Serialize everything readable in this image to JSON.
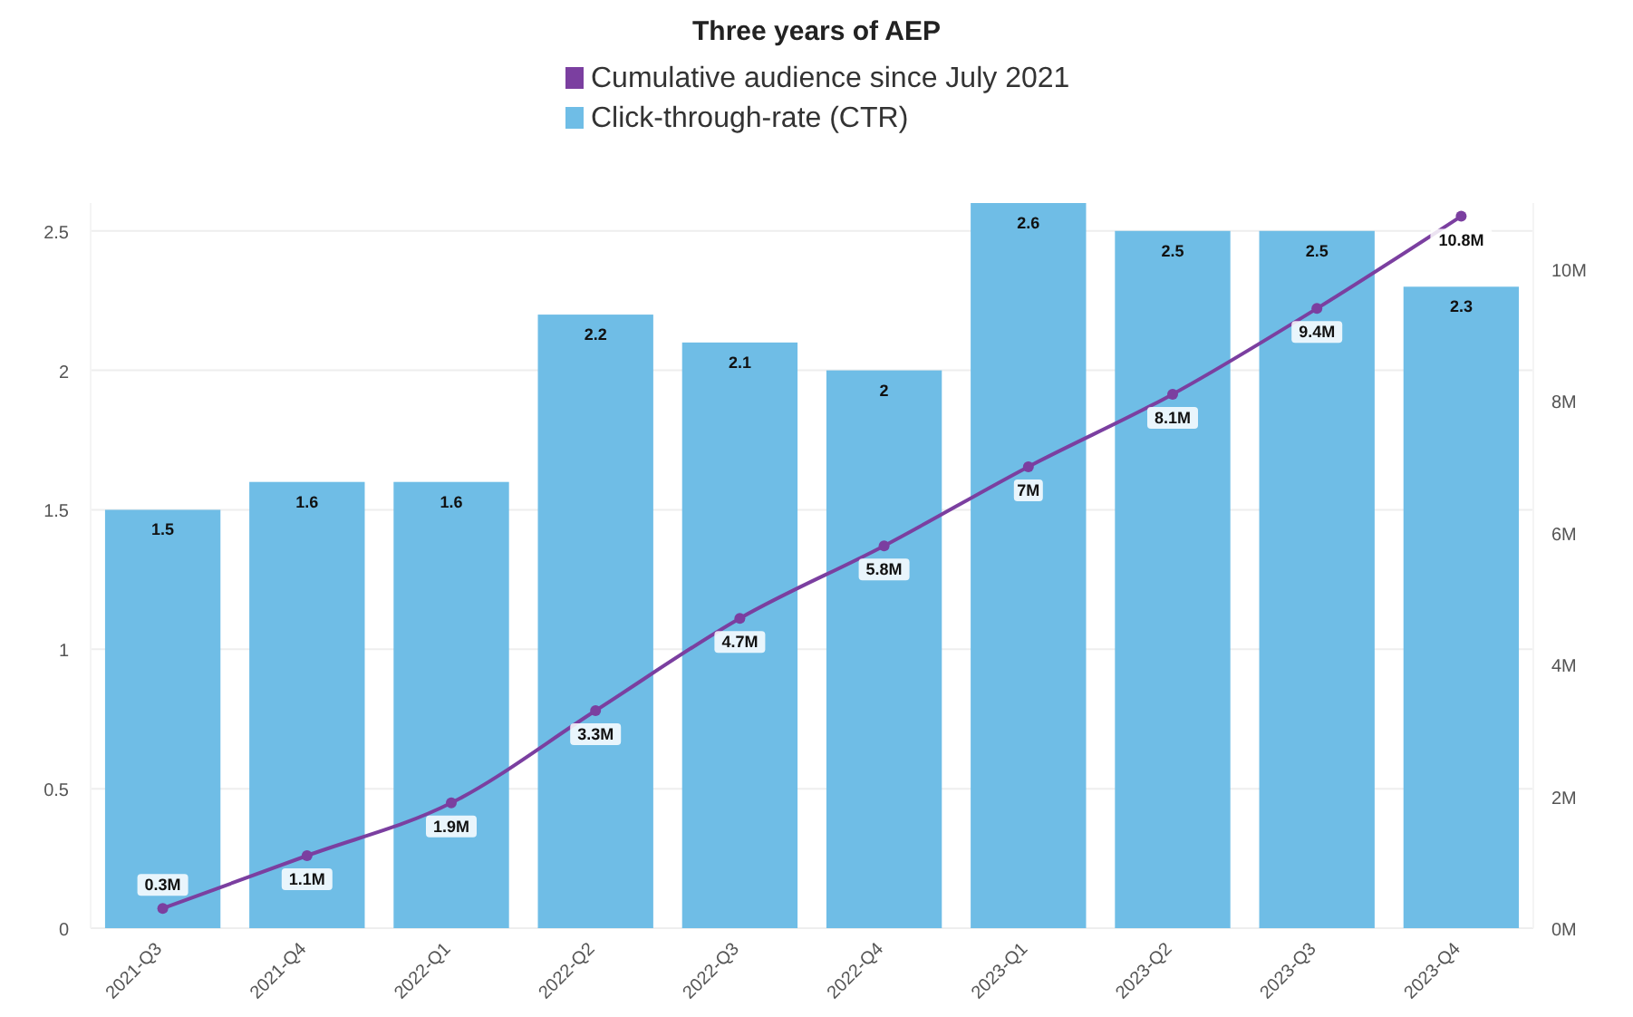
{
  "chart_data": {
    "type": "bar",
    "title": "Three years of AEP",
    "categories": [
      "2021-Q3",
      "2021-Q4",
      "2022-Q1",
      "2022-Q2",
      "2022-Q3",
      "2022-Q4",
      "2023-Q1",
      "2023-Q2",
      "2023-Q3",
      "2023-Q4"
    ],
    "series": [
      {
        "name": "Cumulative audience since July 2021",
        "type": "line",
        "axis": "y2",
        "color": "#7b3fa0",
        "marker": "circle",
        "values": [
          0.3,
          1.1,
          1.9,
          3.3,
          4.7,
          5.8,
          7,
          8.1,
          9.4,
          10.8
        ],
        "value_labels": [
          "0.3M",
          "1.1M",
          "1.9M",
          "3.3M",
          "4.7M",
          "5.8M",
          "7M",
          "8.1M",
          "9.4M",
          "10.8M"
        ]
      },
      {
        "name": "Click-through-rate (CTR)",
        "color": "#6fbde6",
        "values": [
          1.5,
          1.6,
          1.6,
          2.2,
          2.1,
          2,
          2.6,
          2.5,
          2.5,
          2.3
        ],
        "value_labels": [
          "1.5",
          "1.6",
          "1.6",
          "2.2",
          "2.1",
          "2",
          "2.6",
          "2.5",
          "2.5",
          "2.3"
        ]
      }
    ],
    "ylim": [
      0,
      2.6
    ],
    "yticks": [
      0,
      0.5,
      1,
      1.5,
      2,
      2.5
    ],
    "y2lim": [
      0,
      11
    ],
    "y2ticks": [
      {
        "value": 0,
        "label": "0M"
      },
      {
        "value": 2,
        "label": "2M"
      },
      {
        "value": 4,
        "label": "4M"
      },
      {
        "value": 6,
        "label": "6M"
      },
      {
        "value": 8,
        "label": "8M"
      },
      {
        "value": 10,
        "label": "10M"
      }
    ],
    "grid": "y",
    "legend": "top"
  }
}
